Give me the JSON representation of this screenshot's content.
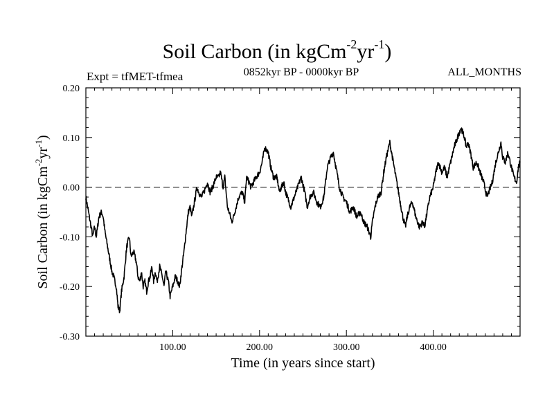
{
  "header": {
    "title_main": "Soil Carbon (in kgCm",
    "title_sup1": "-2",
    "title_mid": "yr",
    "title_sup2": "-1",
    "title_end": ")",
    "expt": "Expt = tfMET-tfmea",
    "period": "0852kyr BP - 0000kyr BP",
    "months": "ALL_MONTHS"
  },
  "chart_data": {
    "type": "line",
    "title": "Soil Carbon (in kgCm-2yr-1)",
    "xlabel": "Time (in years since start)",
    "ylabel": "Soil Carbon (in kgCm-2yr-1)",
    "ylabel_parts": {
      "main": "Soil Carbon (in kgCm",
      "sup1": "-2",
      "mid": "yr",
      "sup2": "-1",
      "end": ")"
    },
    "xlim": [
      0,
      500
    ],
    "ylim": [
      -0.3,
      0.2
    ],
    "xticks": [
      100,
      200,
      300,
      400
    ],
    "xtick_labels": [
      "100.00",
      "200.00",
      "300.00",
      "400.00"
    ],
    "yticks": [
      -0.3,
      -0.2,
      -0.1,
      0.0,
      0.1,
      0.2
    ],
    "ytick_labels": [
      "-0.30",
      "-0.20",
      "-0.10",
      "0.00",
      "0.10",
      "0.20"
    ],
    "reference_line": {
      "y": 0.0,
      "style": "dashed"
    },
    "grid": false,
    "series": [
      {
        "name": "Soil Carbon",
        "x": [
          0,
          4,
          8,
          10,
          12,
          15,
          18,
          20,
          22,
          25,
          28,
          30,
          32,
          35,
          37,
          39,
          41,
          44,
          47,
          50,
          52,
          55,
          58,
          60,
          62,
          64,
          66,
          68,
          70,
          72,
          74,
          76,
          78,
          80,
          82,
          85,
          88,
          90,
          92,
          95,
          97,
          100,
          103,
          106,
          108,
          110,
          113,
          116,
          118,
          120,
          122,
          125,
          128,
          130,
          133,
          136,
          140,
          143,
          146,
          150,
          153,
          155,
          158,
          160,
          163,
          165,
          168,
          170,
          173,
          176,
          180,
          183,
          185,
          188,
          190,
          193,
          196,
          200,
          203,
          206,
          210,
          213,
          216,
          220,
          223,
          225,
          228,
          230,
          232,
          236,
          240,
          244,
          248,
          252,
          255,
          258,
          262,
          266,
          270,
          274,
          278,
          282,
          285,
          288,
          292,
          296,
          300,
          304,
          308,
          312,
          316,
          320,
          324,
          328,
          330,
          333,
          336,
          340,
          343,
          346,
          350,
          352,
          355,
          358,
          360,
          362,
          365,
          368,
          370,
          373,
          376,
          380,
          384,
          388,
          390,
          393,
          396,
          400,
          403,
          406,
          410,
          413,
          416,
          420,
          424,
          428,
          432,
          436,
          438,
          440,
          443,
          446,
          450,
          454,
          458,
          462,
          466,
          468,
          470,
          472,
          475,
          478,
          480,
          483,
          486,
          490,
          493,
          496,
          498,
          500
        ],
        "values": [
          -0.02,
          -0.06,
          -0.1,
          -0.08,
          -0.1,
          -0.06,
          -0.05,
          -0.06,
          -0.09,
          -0.12,
          -0.15,
          -0.17,
          -0.18,
          -0.2,
          -0.24,
          -0.25,
          -0.21,
          -0.18,
          -0.12,
          -0.1,
          -0.14,
          -0.13,
          -0.15,
          -0.18,
          -0.19,
          -0.17,
          -0.2,
          -0.19,
          -0.21,
          -0.19,
          -0.18,
          -0.16,
          -0.19,
          -0.17,
          -0.19,
          -0.16,
          -0.18,
          -0.2,
          -0.17,
          -0.19,
          -0.22,
          -0.2,
          -0.18,
          -0.19,
          -0.2,
          -0.17,
          -0.13,
          -0.08,
          -0.05,
          -0.04,
          -0.06,
          -0.03,
          0.0,
          -0.01,
          -0.02,
          -0.01,
          0.01,
          -0.01,
          0.0,
          0.02,
          0.02,
          0.03,
          0.0,
          0.02,
          -0.04,
          -0.05,
          -0.07,
          -0.06,
          -0.04,
          -0.02,
          -0.01,
          -0.03,
          0.02,
          0.01,
          0.0,
          0.01,
          0.02,
          0.03,
          0.05,
          0.08,
          0.07,
          0.04,
          0.02,
          0.02,
          -0.01,
          0.0,
          0.01,
          -0.01,
          -0.02,
          -0.04,
          -0.02,
          0.0,
          0.02,
          -0.01,
          -0.04,
          -0.02,
          -0.01,
          -0.03,
          -0.04,
          -0.02,
          0.04,
          0.06,
          0.07,
          0.04,
          0.0,
          -0.02,
          -0.03,
          -0.05,
          -0.04,
          -0.06,
          -0.05,
          -0.07,
          -0.08,
          -0.1,
          -0.07,
          -0.04,
          -0.02,
          -0.01,
          0.03,
          0.06,
          0.09,
          0.07,
          0.04,
          0.01,
          -0.01,
          -0.03,
          -0.06,
          -0.08,
          -0.06,
          -0.04,
          -0.03,
          -0.06,
          -0.08,
          -0.07,
          -0.08,
          -0.05,
          -0.02,
          0.0,
          0.03,
          0.05,
          0.03,
          0.04,
          0.02,
          0.05,
          0.08,
          0.1,
          0.12,
          0.1,
          0.08,
          0.09,
          0.07,
          0.04,
          0.05,
          0.03,
          0.01,
          -0.02,
          0.0,
          0.01,
          0.03,
          0.05,
          0.07,
          0.09,
          0.06,
          0.05,
          0.07,
          0.04,
          0.02,
          0.01,
          0.04,
          0.05
        ]
      }
    ]
  }
}
